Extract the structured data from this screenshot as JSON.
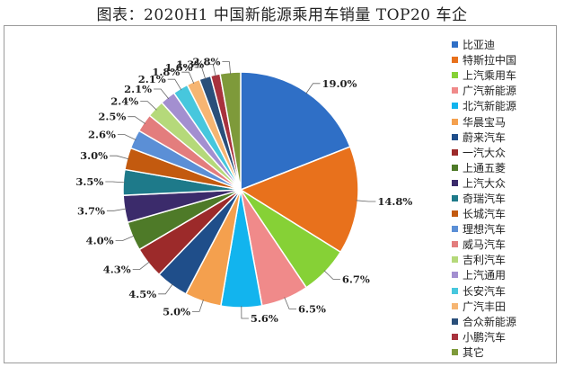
{
  "chart_data": {
    "type": "pie",
    "title": "图表：2020H1 中国新能源乘用车销量 TOP20 车企",
    "start_angle_deg": 0,
    "direction": "clockwise",
    "legend_position": "right",
    "slices": [
      {
        "name": "比亚迪",
        "value": 19.0,
        "label": "19.0%",
        "color": "#2f6fc6"
      },
      {
        "name": "特斯拉中国",
        "value": 14.8,
        "label": "14.8%",
        "color": "#e8711c"
      },
      {
        "name": "上汽乘用车",
        "value": 6.7,
        "label": "6.7%",
        "color": "#86d136"
      },
      {
        "name": "广汽新能源",
        "value": 6.5,
        "label": "6.5%",
        "color": "#f08a8a"
      },
      {
        "name": "北汽新能源",
        "value": 5.6,
        "label": "5.6%",
        "color": "#12b4ee"
      },
      {
        "name": "华晨宝马",
        "value": 5.0,
        "label": "5.0%",
        "color": "#f4a04e"
      },
      {
        "name": "蔚来汽车",
        "value": 4.5,
        "label": "4.5%",
        "color": "#1f4e8a"
      },
      {
        "name": "一汽大众",
        "value": 4.3,
        "label": "4.3%",
        "color": "#9c2a2a"
      },
      {
        "name": "上通五菱",
        "value": 4.0,
        "label": "4.0%",
        "color": "#4e7a28"
      },
      {
        "name": "上汽大众",
        "value": 3.7,
        "label": "3.7%",
        "color": "#3b2b6b"
      },
      {
        "name": "奇瑞汽车",
        "value": 3.5,
        "label": "3.5%",
        "color": "#1e7a8a"
      },
      {
        "name": "长城汽车",
        "value": 3.0,
        "label": "3.0%",
        "color": "#c35a0f"
      },
      {
        "name": "理想汽车",
        "value": 2.6,
        "label": "2.6%",
        "color": "#5b8fd6"
      },
      {
        "name": "威马汽车",
        "value": 2.5,
        "label": "2.5%",
        "color": "#e37d7d"
      },
      {
        "name": "吉利汽车",
        "value": 2.4,
        "label": "2.4%",
        "color": "#b5d97a"
      },
      {
        "name": "上汽通用",
        "value": 2.1,
        "label": "2.1%",
        "color": "#a38fd0"
      },
      {
        "name": "长安汽车",
        "value": 2.1,
        "label": "2.1%",
        "color": "#47c7dd"
      },
      {
        "name": "广汽丰田",
        "value": 1.8,
        "label": "1.8%",
        "color": "#f6b572"
      },
      {
        "name": "合众新能源",
        "value": 1.6,
        "label": "1.6%",
        "color": "#2a4f7a"
      },
      {
        "name": "小鹏汽车",
        "value": 1.3,
        "label": "1.3%",
        "color": "#a8323d"
      },
      {
        "name": "其它",
        "value": 2.8,
        "label": "2.8%",
        "color": "#7e9a3a"
      }
    ]
  }
}
